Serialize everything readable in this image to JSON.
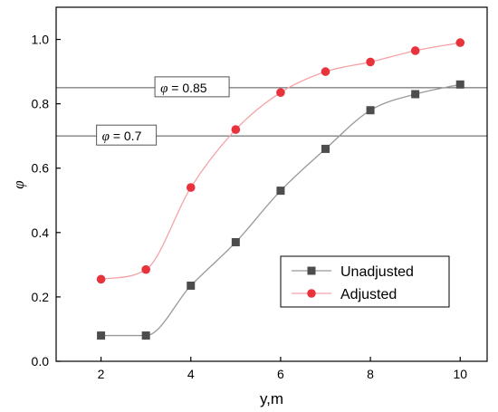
{
  "chart_data": {
    "type": "line",
    "title": "",
    "xlabel": "y,m",
    "ylabel": "φ",
    "xlim": [
      1,
      10.6
    ],
    "ylim": [
      0,
      1.1
    ],
    "x_ticks": [
      2,
      4,
      6,
      8,
      10
    ],
    "y_ticks": [
      0.0,
      0.2,
      0.4,
      0.6,
      0.8,
      1.0
    ],
    "x_tick_labels": [
      "2",
      "4",
      "6",
      "8",
      "10"
    ],
    "y_tick_labels": [
      "0.0",
      "0.2",
      "0.4",
      "0.6",
      "0.8",
      "1.0"
    ],
    "grid": false,
    "legend_position": "lower-right",
    "x": [
      2,
      3,
      4,
      5,
      6,
      7,
      8,
      9,
      10
    ],
    "series": [
      {
        "name": "Unadjusted",
        "marker": "square",
        "color": "#4d4d4d",
        "line_color": "#999999",
        "values": [
          0.08,
          0.08,
          0.235,
          0.37,
          0.53,
          0.66,
          0.78,
          0.83,
          0.86
        ]
      },
      {
        "name": "Adjusted",
        "marker": "circle",
        "color": "#e8323c",
        "line_color": "#f4a3a6",
        "values": [
          0.255,
          0.285,
          0.54,
          0.72,
          0.835,
          0.9,
          0.93,
          0.965,
          0.99
        ]
      }
    ],
    "reference_lines": [
      {
        "y": 0.85,
        "symbol": "φ",
        "text": " = 0.85",
        "x_anchor": 3.2
      },
      {
        "y": 0.7,
        "symbol": "φ",
        "text": " = 0.7",
        "x_anchor": 1.9
      }
    ]
  }
}
